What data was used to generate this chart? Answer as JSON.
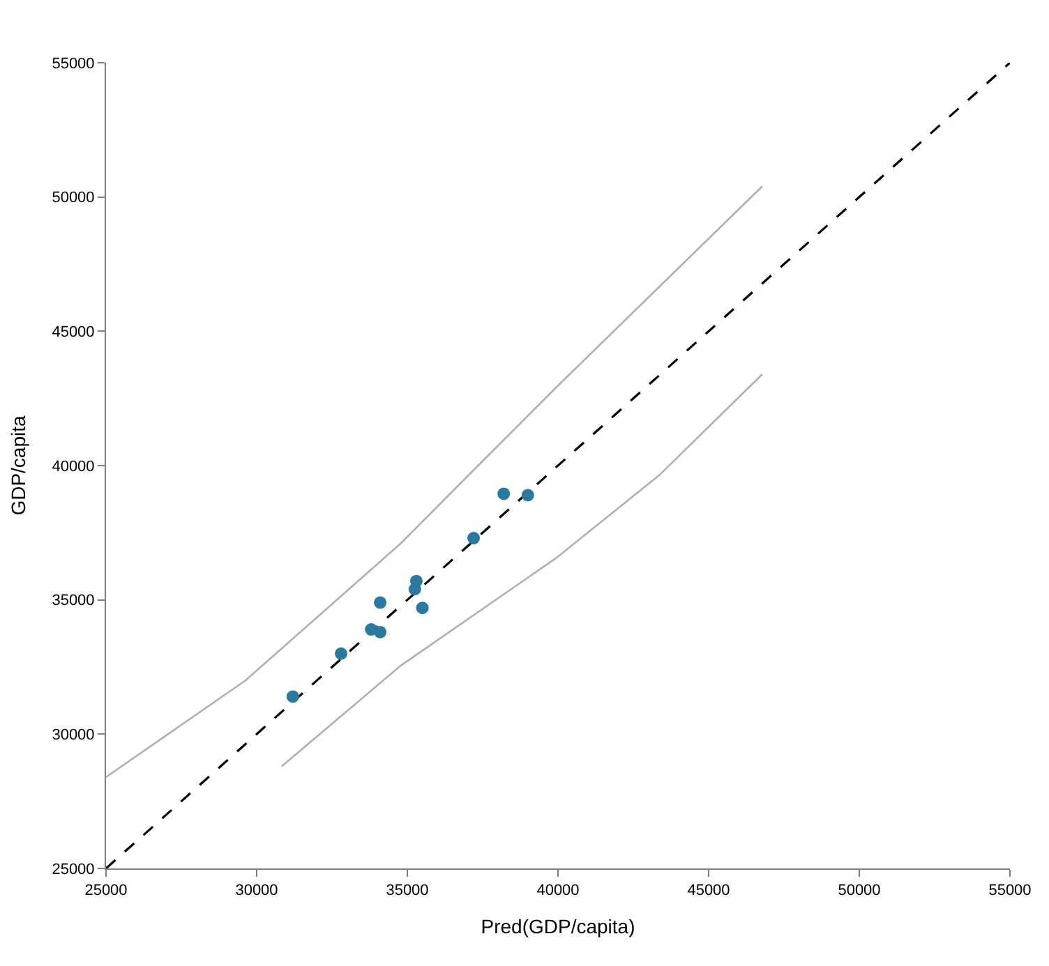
{
  "chart_data": {
    "type": "scatter",
    "xlabel": "Pred(GDP/capita)",
    "ylabel": "GDP/capita",
    "xlim": [
      25000,
      55000
    ],
    "ylim": [
      25000,
      55000
    ],
    "xticks": [
      25000,
      30000,
      35000,
      40000,
      45000,
      50000,
      55000
    ],
    "yticks": [
      25000,
      30000,
      35000,
      40000,
      45000,
      50000,
      55000
    ],
    "series": [
      {
        "type": "line",
        "color": "#b0b0b0",
        "line_style": "solid",
        "marker": "none",
        "x": [
          25000,
          29630,
          34780,
          37350,
          39930,
          46780
        ],
        "values": [
          28400,
          32000,
          37100,
          40000,
          42900,
          50400
        ]
      },
      {
        "type": "line",
        "color": "#b0b0b0",
        "line_style": "solid",
        "marker": "none",
        "x": [
          30830,
          34780,
          39930,
          43360,
          46780
        ],
        "values": [
          28800,
          32550,
          36550,
          39640,
          43400
        ]
      },
      {
        "type": "line",
        "color": "#000000",
        "line_style": "dashed",
        "marker": "none",
        "x": [
          25000,
          55000
        ],
        "values": [
          25000,
          55000
        ]
      },
      {
        "color": "#2a7aa0",
        "marker": "circle",
        "x": [
          31200,
          32800,
          33800,
          34100,
          34100,
          35300,
          35250,
          35500,
          37200,
          38200,
          39000
        ],
        "values": [
          31400,
          33000,
          33900,
          33800,
          34900,
          35700,
          35400,
          34700,
          37300,
          38950,
          38900
        ]
      }
    ]
  }
}
